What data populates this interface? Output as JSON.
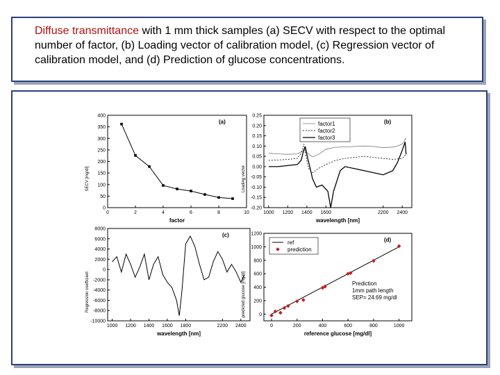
{
  "caption": {
    "highlight": "Diffuse transmittance",
    "rest": " with 1 mm thick samples (a) SECV with respect to the optimal number of factor, (b) Loading vector of calibration model, (c) Regression vector of calibration model, and (d) Prediction of glucose concentrations."
  },
  "chart_data": [
    {
      "type": "line",
      "panel_label": "(a)",
      "xlabel": "factor",
      "ylabel": "SECV [mg/dl]",
      "x": [
        1,
        2,
        3,
        4,
        5,
        6,
        7,
        8,
        9
      ],
      "values": [
        362,
        226,
        178,
        96,
        81,
        72,
        57,
        44,
        39
      ],
      "xlim": [
        0,
        10
      ],
      "ylim": [
        0,
        400
      ],
      "xticks": [
        0,
        2,
        4,
        6,
        8,
        10
      ],
      "yticks": [
        0,
        50,
        100,
        150,
        200,
        250,
        300,
        350,
        400
      ]
    },
    {
      "type": "line",
      "panel_label": "(b)",
      "xlabel": "wavelength [nm]",
      "ylabel": "Loading vector",
      "xlim": [
        950,
        2500
      ],
      "ylim": [
        -0.2,
        0.25
      ],
      "xticks": [
        1000,
        1200,
        1400,
        1600,
        2200,
        2400
      ],
      "yticks": [
        -0.2,
        -0.15,
        -0.1,
        -0.05,
        0.0,
        0.05,
        0.1,
        0.15,
        0.2,
        0.25
      ],
      "ytick_labels": [
        "-0.20",
        "-0.15",
        "-0.10",
        "-0.05",
        "0.00",
        "0.05",
        "0.10",
        "0.15",
        "0.20",
        "0.25"
      ],
      "legend_position": "top-right",
      "series": [
        {
          "name": "factor1",
          "x": [
            1000,
            1100,
            1200,
            1300,
            1340,
            1380,
            1420,
            1460,
            1520,
            1600,
            1700,
            1800,
            1900,
            2000,
            2100,
            2200,
            2300,
            2350,
            2400,
            2440
          ],
          "values": [
            0.065,
            0.062,
            0.06,
            0.062,
            0.072,
            0.078,
            0.06,
            0.048,
            0.058,
            0.085,
            0.094,
            0.096,
            0.098,
            0.1,
            0.098,
            0.092,
            0.095,
            0.1,
            0.11,
            0.14
          ]
        },
        {
          "name": "factor2",
          "x": [
            1000,
            1100,
            1200,
            1300,
            1340,
            1370,
            1390,
            1420,
            1460,
            1520,
            1600,
            1700,
            1800,
            1900,
            2000,
            2100,
            2200,
            2300,
            2400,
            2440
          ],
          "values": [
            0.03,
            0.032,
            0.035,
            0.04,
            0.065,
            0.11,
            0.05,
            -0.01,
            -0.03,
            -0.01,
            0.01,
            0.03,
            0.04,
            0.045,
            0.05,
            0.045,
            0.04,
            0.035,
            0.04,
            0.06
          ]
        },
        {
          "name": "factor3",
          "x": [
            1000,
            1100,
            1200,
            1300,
            1340,
            1370,
            1385,
            1400,
            1430,
            1460,
            1500,
            1560,
            1620,
            1650,
            1680,
            1750,
            1800,
            1900,
            2000,
            2100,
            2200,
            2300,
            2350,
            2400,
            2430,
            2440
          ],
          "values": [
            0.0,
            0.0,
            0.005,
            0.01,
            0.03,
            0.085,
            0.095,
            0.06,
            0.0,
            -0.06,
            -0.1,
            -0.09,
            -0.12,
            -0.2,
            -0.12,
            -0.02,
            0.0,
            -0.01,
            -0.02,
            -0.03,
            -0.04,
            -0.02,
            0.02,
            0.08,
            0.12,
            0.06
          ]
        }
      ]
    },
    {
      "type": "line",
      "panel_label": "(c)",
      "xlabel": "wavelength [nm]",
      "ylabel": "Regression coefficient",
      "xlim": [
        950,
        2500
      ],
      "ylim": [
        -10000,
        8000
      ],
      "xticks": [
        1000,
        1200,
        1400,
        1600,
        1800,
        2200,
        2400
      ],
      "yticks": [
        -10000,
        -8000,
        -6000,
        -4000,
        -2000,
        0,
        2000,
        4000,
        6000,
        8000
      ],
      "x": [
        1000,
        1050,
        1100,
        1150,
        1200,
        1250,
        1300,
        1350,
        1400,
        1450,
        1500,
        1550,
        1600,
        1650,
        1700,
        1730,
        1760,
        1800,
        1850,
        1900,
        1950,
        2000,
        2050,
        2100,
        2150,
        2200,
        2250,
        2300,
        2350,
        2400,
        2440
      ],
      "values": [
        1500,
        2500,
        -500,
        3000,
        1000,
        -1500,
        500,
        3000,
        -2000,
        1000,
        2500,
        -1000,
        -2500,
        -3500,
        -6000,
        -9000,
        -4000,
        5000,
        6500,
        4500,
        1000,
        -2000,
        -1500,
        1500,
        3500,
        2000,
        -500,
        1000,
        -500,
        -2500,
        -1000
      ]
    },
    {
      "type": "scatter",
      "panel_label": "(d)",
      "xlabel": "reference glucose [mg/dl]",
      "ylabel": "predicted glucose [mg/dl]",
      "xlim": [
        -60,
        1100
      ],
      "ylim": [
        -100,
        1200
      ],
      "xticks": [
        0,
        200,
        400,
        600,
        800,
        1000
      ],
      "yticks": [
        0,
        200,
        400,
        600,
        800,
        1000,
        1200
      ],
      "legend_position": "top-left",
      "legend": [
        "ref",
        "prediction"
      ],
      "ref_line": {
        "x": [
          0,
          1000
        ],
        "values": [
          0,
          1000
        ]
      },
      "x": [
        0,
        30,
        70,
        100,
        130,
        200,
        250,
        400,
        420,
        600,
        620,
        800,
        1000
      ],
      "values": [
        -20,
        40,
        20,
        90,
        120,
        190,
        210,
        390,
        410,
        600,
        610,
        790,
        1010
      ],
      "annotations": [
        "Prediction",
        "1mm path length",
        "SEP= 24.69 mg/dl"
      ]
    }
  ]
}
